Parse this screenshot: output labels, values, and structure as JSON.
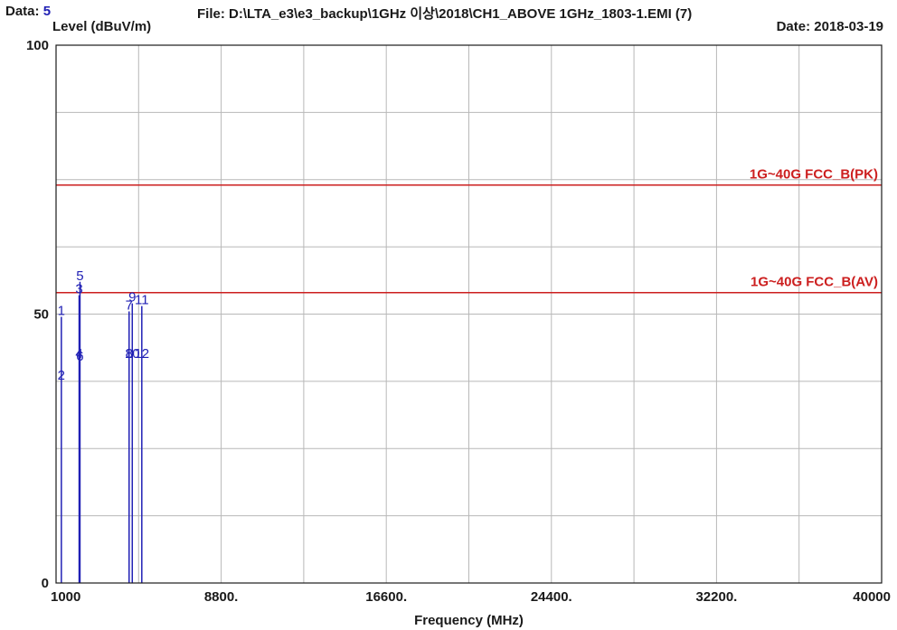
{
  "header": {
    "data_label": "Data:",
    "data_value": "5",
    "file_path": "File: D:\\LTA_e3\\e3_backup\\1GHz 이상\\2018\\CH1_ABOVE 1GHz_1803-1.EMI  (7)",
    "date": "Date: 2018-03-19"
  },
  "chart_data": {
    "type": "line",
    "ylabel": "Level (dBuV/m)",
    "xlabel": "Frequency (MHz)",
    "xlim": [
      1000,
      40000
    ],
    "ylim": [
      0,
      100
    ],
    "x_ticks": [
      "1000",
      "8800.",
      "16600.",
      "24400.",
      "32200.",
      "40000"
    ],
    "y_ticks": [
      "0",
      "50",
      "100"
    ],
    "grid": true,
    "limit_lines": [
      {
        "name": "1G~40G FCC_B(PK)",
        "value": 74,
        "color": "#cc1f1f"
      },
      {
        "name": "1G~40G FCC_B(AV)",
        "value": 54,
        "color": "#cc1f1f"
      }
    ],
    "markers": [
      {
        "label": "1",
        "freq": 1250,
        "level": 49.5
      },
      {
        "label": "2",
        "freq": 1250,
        "level": 37.5
      },
      {
        "label": "3",
        "freq": 2090,
        "level": 53.5
      },
      {
        "label": "4",
        "freq": 2090,
        "level": 41.5
      },
      {
        "label": "5",
        "freq": 2130,
        "level": 56.0
      },
      {
        "label": "6",
        "freq": 2130,
        "level": 41.0
      },
      {
        "label": "7",
        "freq": 4450,
        "level": 50.5
      },
      {
        "label": "8",
        "freq": 4450,
        "level": 41.5
      },
      {
        "label": "9",
        "freq": 4600,
        "level": 52.0
      },
      {
        "label": "10",
        "freq": 4600,
        "level": 41.5
      },
      {
        "label": "11",
        "freq": 5050,
        "level": 51.5
      },
      {
        "label": "12",
        "freq": 5050,
        "level": 41.5
      }
    ],
    "colors": {
      "trace": "#2121b5",
      "limit": "#cc1f1f",
      "grid": "#b8b8b8",
      "axis": "#1a1a1a"
    }
  }
}
